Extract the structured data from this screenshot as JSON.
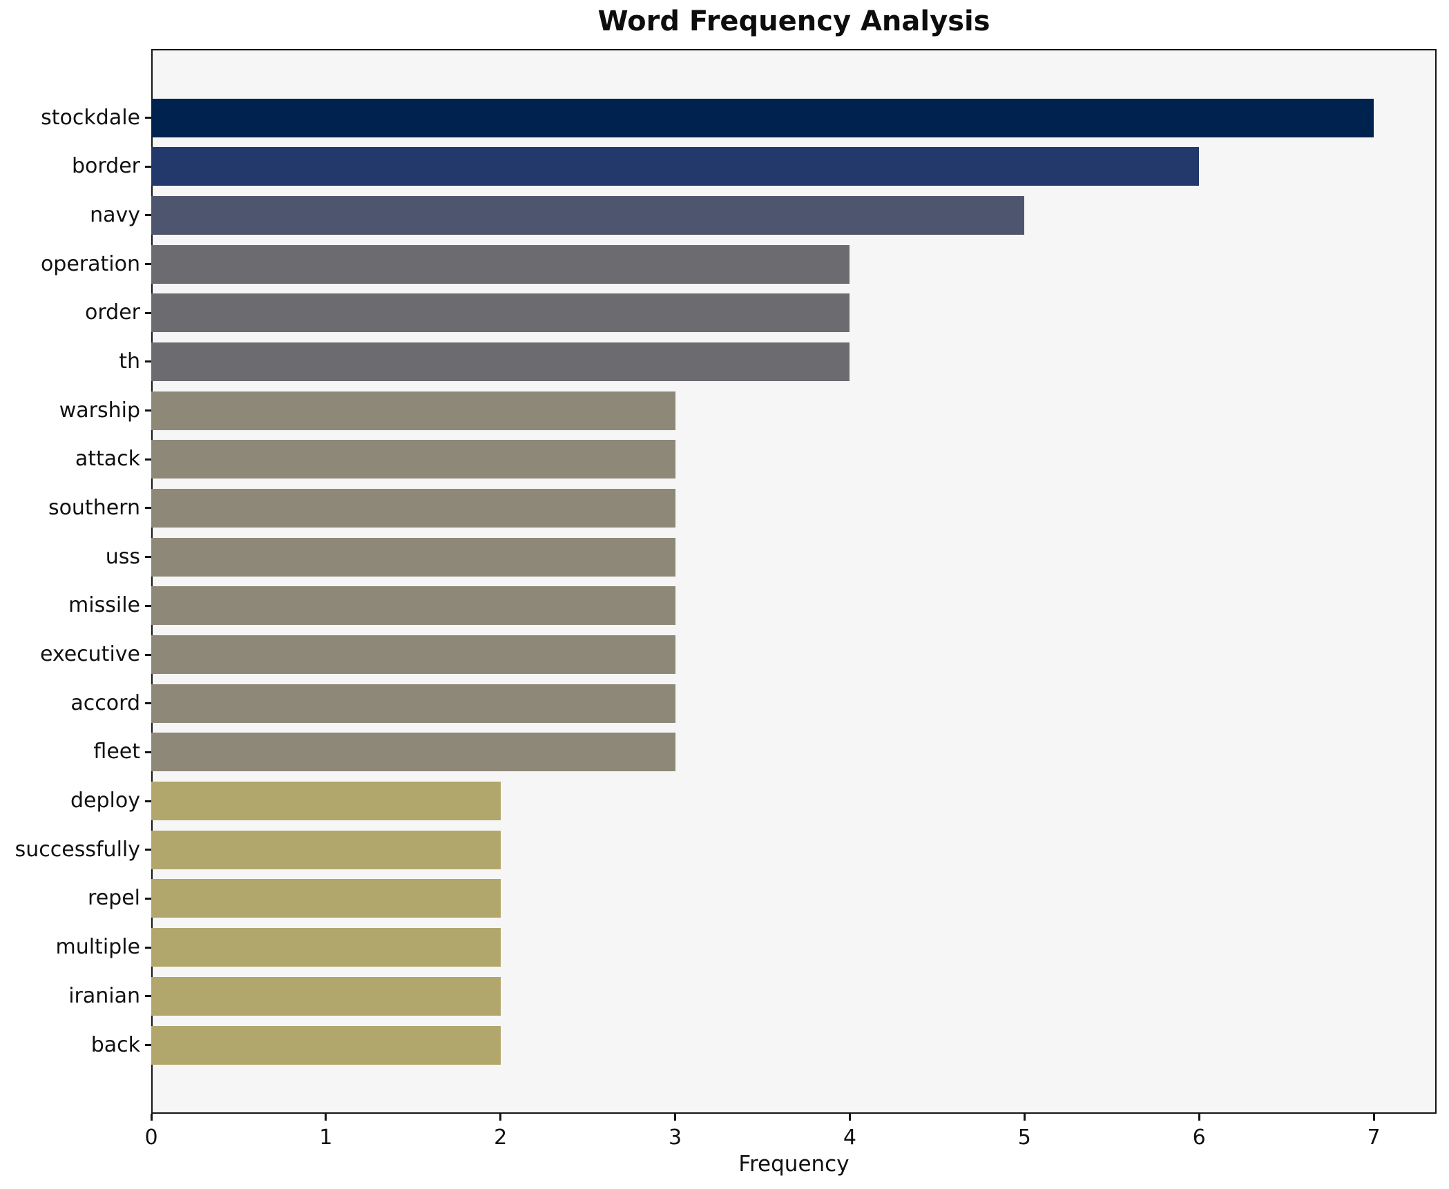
{
  "title": "Word Frequency Analysis",
  "chart_data": {
    "type": "bar",
    "orientation": "horizontal",
    "title": "Word Frequency Analysis",
    "xlabel": "Frequency",
    "ylabel": "",
    "categories": [
      "stockdale",
      "border",
      "navy",
      "operation",
      "order",
      "th",
      "warship",
      "attack",
      "southern",
      "uss",
      "missile",
      "executive",
      "accord",
      "fleet",
      "deploy",
      "successfully",
      "repel",
      "multiple",
      "iranian",
      "back"
    ],
    "values": [
      7,
      6,
      5,
      4,
      4,
      4,
      3,
      3,
      3,
      3,
      3,
      3,
      3,
      3,
      2,
      2,
      2,
      2,
      2,
      2
    ],
    "bar_colors": [
      "#00224e",
      "#24396b",
      "#4d566e",
      "#6c6c70",
      "#6c6c70",
      "#6c6c70",
      "#8e8878",
      "#8e8878",
      "#8e8878",
      "#8e8878",
      "#8e8878",
      "#8e8878",
      "#8e8878",
      "#8e8878",
      "#b1a76c",
      "#b1a76c",
      "#b1a76c",
      "#b1a76c",
      "#b1a76c",
      "#b1a76c"
    ],
    "xticks": [
      0,
      1,
      2,
      3,
      4,
      5,
      6,
      7
    ],
    "xlim": [
      0,
      7.36
    ],
    "grid": false,
    "legend": null,
    "plot_background": "#f6f6f7",
    "figure_background": "#ffffff",
    "colormap_note": "cividis-reversed mapped to frequency value"
  }
}
